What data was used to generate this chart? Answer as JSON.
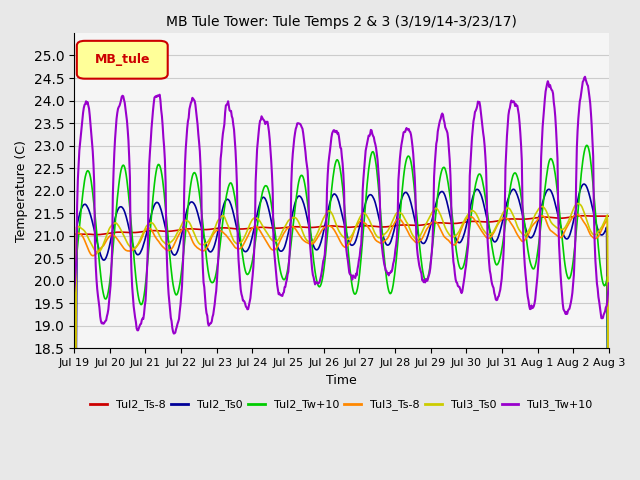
{
  "title": "MB Tule Tower: Tule Temps 2 & 3 (3/19/14-3/23/17)",
  "xlabel": "Time",
  "ylabel": "Temperature (C)",
  "ylim": [
    18.5,
    25.5
  ],
  "yticks": [
    18.5,
    19.0,
    19.5,
    20.0,
    20.5,
    21.0,
    21.5,
    22.0,
    22.5,
    23.0,
    23.5,
    24.0,
    24.5,
    25.0
  ],
  "legend_label": "MB_tule",
  "series_order": [
    "Tul2_Ts-8",
    "Tul2_Ts0",
    "Tul2_Tw+10",
    "Tul3_Ts-8",
    "Tul3_Ts0",
    "Tul3_Tw+10"
  ],
  "series": {
    "Tul2_Ts-8": {
      "color": "#cc0000",
      "lw": 1.2
    },
    "Tul2_Ts0": {
      "color": "#000099",
      "lw": 1.2
    },
    "Tul2_Tw+10": {
      "color": "#00cc00",
      "lw": 1.2
    },
    "Tul3_Ts-8": {
      "color": "#ff8800",
      "lw": 1.2
    },
    "Tul3_Ts0": {
      "color": "#cccc00",
      "lw": 1.2
    },
    "Tul3_Tw+10": {
      "color": "#9900cc",
      "lw": 1.5
    }
  },
  "bg_color": "#e8e8e8",
  "plot_bg": "#f5f5f5",
  "grid_color": "#cccccc",
  "legend_box_color": "#ffff99",
  "legend_box_edge": "#cc0000",
  "legend_text_color": "#cc0000"
}
